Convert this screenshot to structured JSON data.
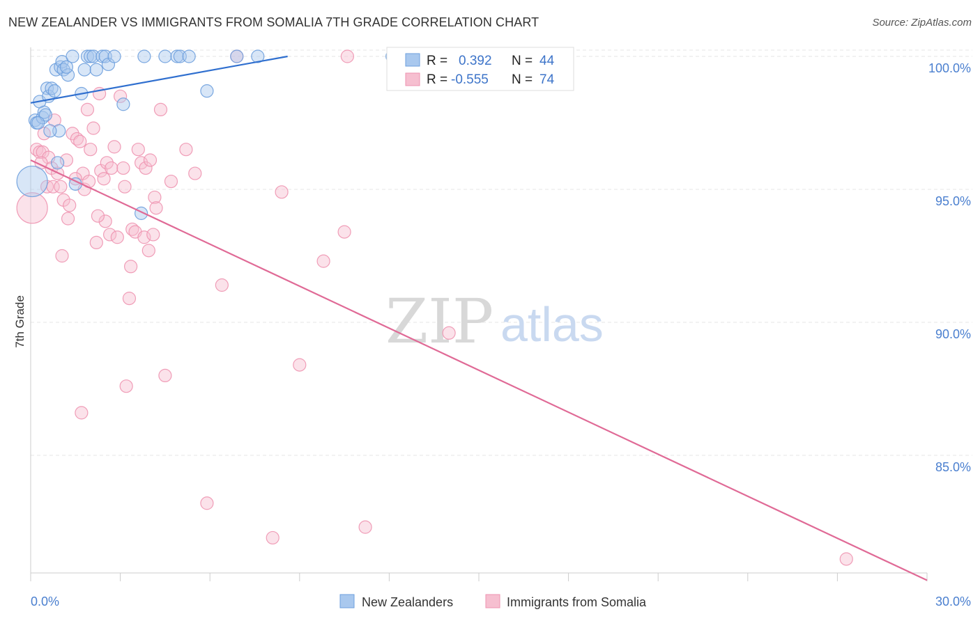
{
  "header": {
    "title": "NEW ZEALANDER VS IMMIGRANTS FROM SOMALIA 7TH GRADE CORRELATION CHART",
    "source": "Source: ZipAtlas.com"
  },
  "watermark": {
    "zip": "ZIP",
    "atlas": "atlas"
  },
  "colors": {
    "blue_fill": "#a9c8ee",
    "blue_stroke": "#6d9fdd",
    "blue_line": "#2f6fcf",
    "pink_fill": "#f6bfd0",
    "pink_stroke": "#ee93b0",
    "pink_line": "#e06a96",
    "tick_text": "#4a7fcf",
    "grid": "#e6e6e6"
  },
  "legend_box": {
    "rows": [
      {
        "r_label": "R =",
        "r_value": "0.392",
        "n_label": "N =",
        "n_value": "44"
      },
      {
        "r_label": "R =",
        "r_value": "-0.555",
        "n_label": "N =",
        "n_value": "74"
      }
    ]
  },
  "bottom_legend": {
    "series1": "New Zealanders",
    "series2": "Immigrants from Somalia"
  },
  "chart_data": {
    "type": "scatter",
    "title": "NEW ZEALANDER VS IMMIGRANTS FROM SOMALIA 7TH GRADE CORRELATION CHART",
    "xlabel": "",
    "ylabel": "7th Grade",
    "xlim": [
      0,
      30
    ],
    "ylim": [
      80,
      100.8
    ],
    "x_tick_labels": [
      "0.0%",
      "30.0%"
    ],
    "y_ticks": [
      85,
      90,
      95,
      100
    ],
    "y_tick_labels": [
      "85.0%",
      "90.0%",
      "95.0%",
      "100.0%"
    ],
    "series": [
      {
        "name": "New Zealanders",
        "R": 0.392,
        "N": 44,
        "trend": {
          "x": [
            0,
            8.6
          ],
          "y": [
            98.25,
            100
          ]
        },
        "points": [
          {
            "x": 0.05,
            "y": 95.3,
            "big": true
          },
          {
            "x": 0.15,
            "y": 97.6
          },
          {
            "x": 0.2,
            "y": 97.5
          },
          {
            "x": 0.3,
            "y": 98.3
          },
          {
            "x": 0.4,
            "y": 97.7
          },
          {
            "x": 0.45,
            "y": 97.9
          },
          {
            "x": 0.5,
            "y": 97.8
          },
          {
            "x": 0.55,
            "y": 98.8
          },
          {
            "x": 0.6,
            "y": 98.5
          },
          {
            "x": 0.7,
            "y": 98.8
          },
          {
            "x": 0.8,
            "y": 98.7
          },
          {
            "x": 0.85,
            "y": 99.5
          },
          {
            "x": 0.95,
            "y": 97.2
          },
          {
            "x": 1.0,
            "y": 99.6
          },
          {
            "x": 1.05,
            "y": 99.8
          },
          {
            "x": 1.1,
            "y": 99.5
          },
          {
            "x": 1.25,
            "y": 99.3
          },
          {
            "x": 1.4,
            "y": 100.0
          },
          {
            "x": 1.7,
            "y": 98.6
          },
          {
            "x": 1.8,
            "y": 99.5
          },
          {
            "x": 1.9,
            "y": 100.0
          },
          {
            "x": 2.0,
            "y": 100.0
          },
          {
            "x": 2.1,
            "y": 100.0
          },
          {
            "x": 2.2,
            "y": 99.5
          },
          {
            "x": 2.4,
            "y": 100.0
          },
          {
            "x": 2.5,
            "y": 100.0
          },
          {
            "x": 2.6,
            "y": 99.7
          },
          {
            "x": 2.8,
            "y": 100.0
          },
          {
            "x": 3.1,
            "y": 98.2
          },
          {
            "x": 3.8,
            "y": 100.0
          },
          {
            "x": 4.5,
            "y": 100.0
          },
          {
            "x": 4.9,
            "y": 100.0
          },
          {
            "x": 5.0,
            "y": 100.0
          },
          {
            "x": 5.3,
            "y": 100.0
          },
          {
            "x": 5.9,
            "y": 98.7
          },
          {
            "x": 6.9,
            "y": 100.0
          },
          {
            "x": 7.6,
            "y": 100.0
          },
          {
            "x": 12.1,
            "y": 100.0
          },
          {
            "x": 1.5,
            "y": 95.2
          },
          {
            "x": 0.9,
            "y": 96.0
          },
          {
            "x": 3.7,
            "y": 94.1
          },
          {
            "x": 0.25,
            "y": 97.5
          },
          {
            "x": 0.65,
            "y": 97.2
          },
          {
            "x": 1.2,
            "y": 99.6
          }
        ]
      },
      {
        "name": "Immigrants from Somalia",
        "R": -0.555,
        "N": 74,
        "trend": {
          "x": [
            0,
            30
          ],
          "y": [
            96.1,
            80.3
          ]
        },
        "points": [
          {
            "x": 0.05,
            "y": 94.3,
            "big": true
          },
          {
            "x": 0.2,
            "y": 96.5
          },
          {
            "x": 0.3,
            "y": 96.4
          },
          {
            "x": 0.4,
            "y": 96.4
          },
          {
            "x": 0.45,
            "y": 97.1
          },
          {
            "x": 0.55,
            "y": 95.1
          },
          {
            "x": 0.6,
            "y": 96.2
          },
          {
            "x": 0.7,
            "y": 95.8
          },
          {
            "x": 0.75,
            "y": 95.1
          },
          {
            "x": 0.8,
            "y": 97.6
          },
          {
            "x": 0.9,
            "y": 95.6
          },
          {
            "x": 1.0,
            "y": 95.1
          },
          {
            "x": 1.05,
            "y": 92.5
          },
          {
            "x": 1.1,
            "y": 94.6
          },
          {
            "x": 1.2,
            "y": 96.1
          },
          {
            "x": 1.25,
            "y": 93.9
          },
          {
            "x": 1.3,
            "y": 94.4
          },
          {
            "x": 1.4,
            "y": 97.1
          },
          {
            "x": 1.55,
            "y": 96.9
          },
          {
            "x": 1.65,
            "y": 96.8
          },
          {
            "x": 1.7,
            "y": 86.6
          },
          {
            "x": 1.75,
            "y": 95.6
          },
          {
            "x": 1.8,
            "y": 95.0
          },
          {
            "x": 1.9,
            "y": 98.0
          },
          {
            "x": 1.95,
            "y": 95.3
          },
          {
            "x": 2.0,
            "y": 96.5
          },
          {
            "x": 2.1,
            "y": 97.3
          },
          {
            "x": 2.2,
            "y": 93.0
          },
          {
            "x": 2.3,
            "y": 98.6
          },
          {
            "x": 2.35,
            "y": 95.7
          },
          {
            "x": 2.45,
            "y": 95.4
          },
          {
            "x": 2.5,
            "y": 93.8
          },
          {
            "x": 2.55,
            "y": 96.0
          },
          {
            "x": 2.65,
            "y": 93.3
          },
          {
            "x": 2.7,
            "y": 95.8
          },
          {
            "x": 2.8,
            "y": 96.6
          },
          {
            "x": 2.9,
            "y": 93.2
          },
          {
            "x": 3.0,
            "y": 98.5
          },
          {
            "x": 3.1,
            "y": 95.8
          },
          {
            "x": 3.15,
            "y": 95.1
          },
          {
            "x": 3.2,
            "y": 87.6
          },
          {
            "x": 3.3,
            "y": 90.9
          },
          {
            "x": 3.35,
            "y": 92.1
          },
          {
            "x": 3.4,
            "y": 93.5
          },
          {
            "x": 3.5,
            "y": 93.4
          },
          {
            "x": 3.6,
            "y": 96.5
          },
          {
            "x": 3.7,
            "y": 96.0
          },
          {
            "x": 3.8,
            "y": 93.2
          },
          {
            "x": 3.85,
            "y": 95.8
          },
          {
            "x": 3.95,
            "y": 92.7
          },
          {
            "x": 4.0,
            "y": 96.1
          },
          {
            "x": 4.1,
            "y": 93.3
          },
          {
            "x": 4.15,
            "y": 94.7
          },
          {
            "x": 4.2,
            "y": 94.3
          },
          {
            "x": 4.35,
            "y": 98.0
          },
          {
            "x": 4.5,
            "y": 88.0
          },
          {
            "x": 4.7,
            "y": 95.3
          },
          {
            "x": 5.2,
            "y": 96.5
          },
          {
            "x": 5.5,
            "y": 95.6
          },
          {
            "x": 5.9,
            "y": 83.2
          },
          {
            "x": 6.4,
            "y": 91.4
          },
          {
            "x": 6.9,
            "y": 100.0
          },
          {
            "x": 8.1,
            "y": 81.9
          },
          {
            "x": 8.4,
            "y": 94.9
          },
          {
            "x": 9.0,
            "y": 88.4
          },
          {
            "x": 9.8,
            "y": 92.3
          },
          {
            "x": 10.5,
            "y": 93.4
          },
          {
            "x": 10.6,
            "y": 100.0
          },
          {
            "x": 11.2,
            "y": 82.3
          },
          {
            "x": 14.0,
            "y": 89.6
          },
          {
            "x": 27.3,
            "y": 81.1
          },
          {
            "x": 1.5,
            "y": 95.4
          },
          {
            "x": 0.35,
            "y": 96.0
          },
          {
            "x": 2.25,
            "y": 94.0
          }
        ]
      }
    ]
  }
}
